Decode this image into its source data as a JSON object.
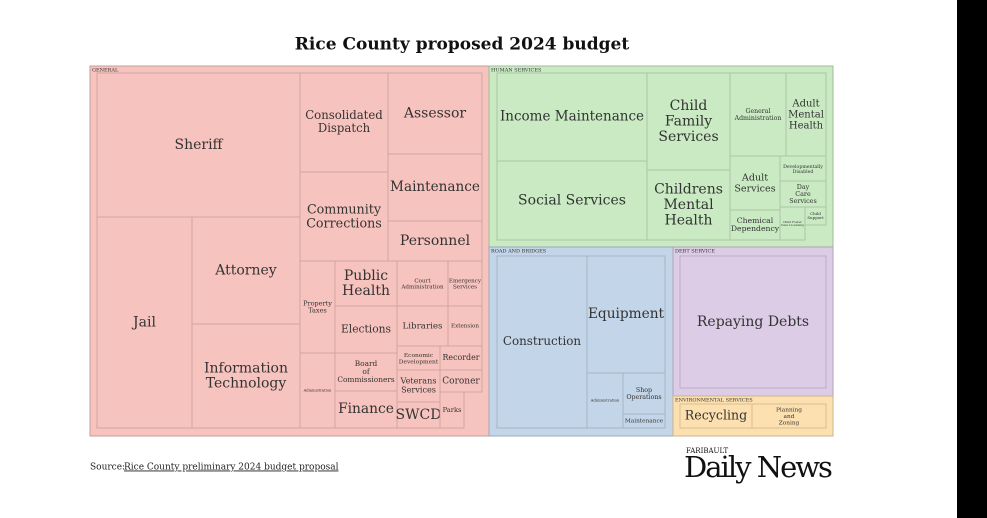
{
  "chart_data": {
    "type": "treemap",
    "title": "Rice County proposed 2024 budget",
    "groups": [
      {
        "name": "GENERAL",
        "color": "#f7c3be",
        "items": [
          "Sheriff",
          "Jail",
          "Attorney",
          "Information Technology",
          "Consolidated Dispatch",
          "Assessor",
          "Maintenance",
          "Community Corrections",
          "Personnel",
          "Property Taxes",
          "Administration",
          "Public Health",
          "Elections",
          "Board of Commissioners",
          "Finance",
          "Court Administration",
          "Emergency Services",
          "Libraries",
          "Extension",
          "Economic Development",
          "Recorder",
          "Veterans Services",
          "Coroner",
          "SWCD",
          "Parks"
        ]
      },
      {
        "name": "HUMAN SERVICES",
        "color": "#c9eac2",
        "items": [
          "Income Maintenance",
          "Social Services",
          "Child Family Services",
          "Childrens Mental Health",
          "General Administration",
          "Adult Mental Health",
          "Adult Services",
          "Chemical Dependency",
          "Developmentally Disabled",
          "Day Care Services",
          "Child Foster Care Licensing",
          "Child Support"
        ]
      },
      {
        "name": "ROAD AND BRIDGES",
        "color": "#c3d5e8",
        "items": [
          "Construction",
          "Equipment",
          "Administration",
          "Shop Operations",
          "Maintenance"
        ]
      },
      {
        "name": "DEBT SERVICE",
        "color": "#dccce6",
        "items": [
          "Repaying Debts"
        ]
      },
      {
        "name": "ENVIRONMENTAL SERVICES",
        "color": "#fde0b0",
        "items": [
          "Recycling",
          "Planning and Zoning"
        ]
      }
    ]
  },
  "source": {
    "prefix": "Source:",
    "link": "Rice County preliminary 2024 budget proposal"
  },
  "logo": {
    "top": "FARIBAULT",
    "name": "Daily News"
  }
}
